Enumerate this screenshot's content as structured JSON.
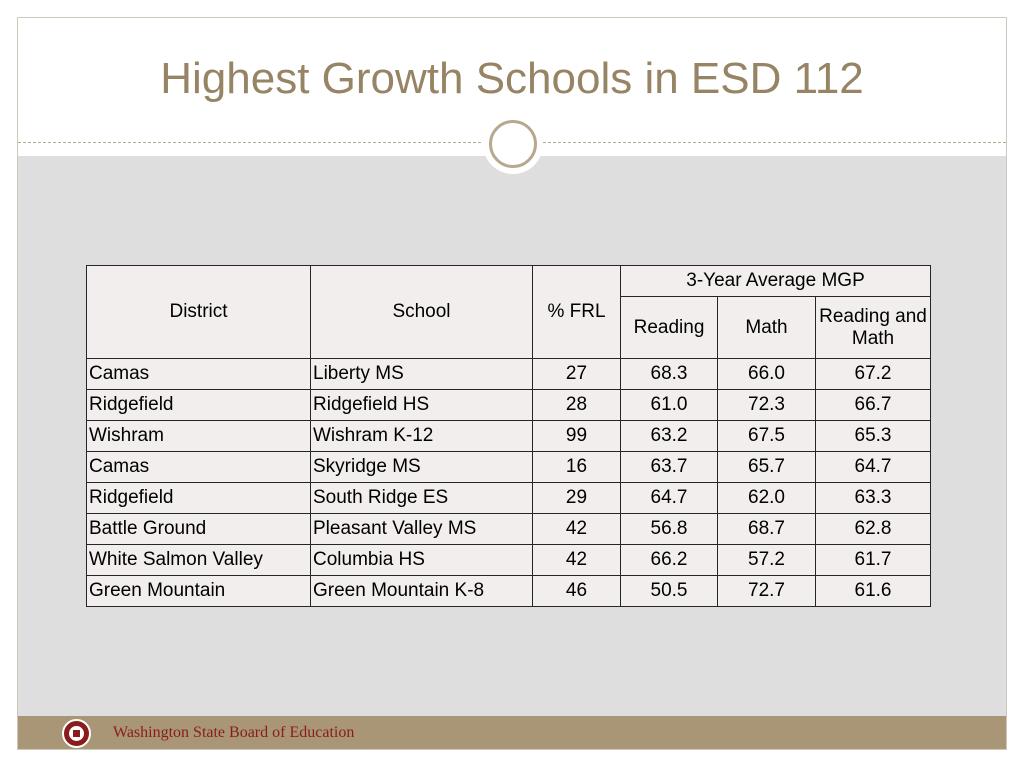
{
  "slide": {
    "title": "Highest Growth Schools in ESD 112",
    "footer_text": "Washington State Board of Education"
  },
  "table": {
    "headers": {
      "district": "District",
      "school": "School",
      "frl": "% FRL",
      "group": "3-Year Average MGP",
      "reading": "Reading",
      "math": "Math",
      "reading_and_math": "Reading and Math"
    },
    "rows": [
      {
        "district": "Camas",
        "school": "Liberty MS",
        "frl": "27",
        "reading": "68.3",
        "math": "66.0",
        "both": "67.2"
      },
      {
        "district": "Ridgefield",
        "school": "Ridgefield HS",
        "frl": "28",
        "reading": "61.0",
        "math": "72.3",
        "both": "66.7"
      },
      {
        "district": "Wishram",
        "school": "Wishram K-12",
        "frl": "99",
        "reading": "63.2",
        "math": "67.5",
        "both": "65.3"
      },
      {
        "district": "Camas",
        "school": "Skyridge MS",
        "frl": "16",
        "reading": "63.7",
        "math": "65.7",
        "both": "64.7"
      },
      {
        "district": "Ridgefield",
        "school": "South Ridge ES",
        "frl": "29",
        "reading": "64.7",
        "math": "62.0",
        "both": "63.3"
      },
      {
        "district": "Battle Ground",
        "school": "Pleasant Valley MS",
        "frl": "42",
        "reading": "56.8",
        "math": "68.7",
        "both": "62.8"
      },
      {
        "district": "White Salmon Valley",
        "school": "Columbia HS",
        "frl": "42",
        "reading": "66.2",
        "math": "57.2",
        "both": "61.7"
      },
      {
        "district": "Green Mountain",
        "school": "Green Mountain K-8",
        "frl": "46",
        "reading": "50.5",
        "math": "72.7",
        "both": "61.6"
      }
    ]
  },
  "colors": {
    "title": "#968464",
    "footer_bar": "#a89677",
    "footer_text": "#8b1c1c",
    "table_bg": "#f3eeee"
  }
}
